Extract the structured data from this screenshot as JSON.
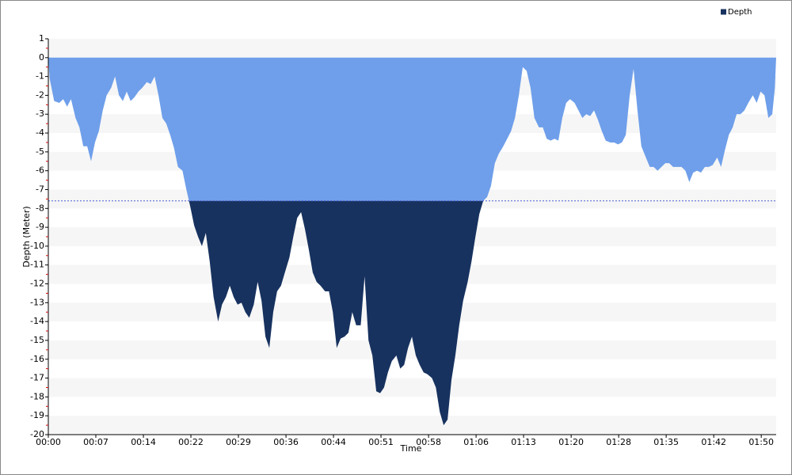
{
  "chart_data": {
    "type": "area",
    "x_label": "Time",
    "y_label": "Depth (Meter)",
    "x": [
      0,
      0.2,
      0.9,
      1.7,
      2.3,
      2.9,
      3.5,
      4.2,
      4.8,
      5.4,
      6.0,
      6.6,
      7.2,
      7.8,
      8.4,
      9.0,
      9.7,
      10.3,
      10.9,
      11.5,
      12.1,
      12.7,
      13.3,
      13.9,
      14.5,
      15.2,
      15.8,
      16.4,
      17.0,
      17.6,
      18.2,
      18.8,
      19.4,
      20.0,
      20.7,
      21.3,
      21.9,
      22.5,
      23.1,
      23.7,
      24.3,
      24.9,
      25.5,
      26.2,
      26.8,
      27.4,
      28.0,
      28.6,
      29.2,
      29.8,
      30.4,
      31.0,
      31.7,
      32.3,
      32.9,
      33.5,
      34.1,
      34.7,
      35.3,
      35.9,
      36.5,
      37.2,
      37.8,
      38.4,
      39.0,
      39.6,
      40.2,
      40.8,
      41.4,
      42.0,
      42.7,
      43.3,
      43.9,
      44.5,
      45.1,
      45.7,
      46.3,
      46.9,
      47.5,
      48.2,
      48.8,
      49.4,
      50.0,
      50.6,
      51.2,
      51.8,
      52.4,
      53.0,
      53.7,
      54.3,
      54.9,
      55.5,
      56.1,
      56.7,
      57.3,
      57.9,
      58.5,
      59.2,
      59.8,
      60.4,
      61.0,
      61.6,
      62.2,
      62.8,
      63.4,
      64.0,
      64.7,
      65.3,
      65.9,
      66.5,
      67.1,
      67.7,
      68.3,
      68.9,
      69.5,
      70.2,
      70.8,
      71.4,
      72.0,
      72.6,
      73.2,
      73.8,
      74.4,
      75.0,
      75.7,
      76.3,
      76.9,
      77.5,
      78.1,
      78.7,
      79.3,
      79.9,
      80.5,
      81.2,
      81.8,
      82.4,
      83.0,
      83.6,
      84.2,
      84.8,
      85.4,
      86.0,
      86.7,
      87.3,
      87.9,
      88.5,
      89.1,
      89.7,
      90.3,
      90.9,
      91.5,
      92.2,
      92.8,
      93.4,
      94.0,
      94.6,
      95.2,
      95.8,
      96.4,
      97.0,
      97.7,
      98.3,
      98.9,
      99.5,
      100.1,
      100.7,
      101.3,
      101.9,
      102.5,
      103.2,
      103.8,
      104.4,
      105.0,
      105.6,
      106.2,
      106.8,
      107.4,
      108.0,
      108.7,
      109.3,
      109.9,
      110.5,
      111.1,
      111.7,
      112.1,
      112.3
    ],
    "series": [
      {
        "name": "Depth",
        "color": "#17325f",
        "above_color": "#6f9fea",
        "values": [
          0,
          -1.1,
          -2.3,
          -2.4,
          -2.2,
          -2.6,
          -2.2,
          -3.2,
          -3.7,
          -4.7,
          -4.7,
          -5.5,
          -4.5,
          -3.9,
          -2.8,
          -2.0,
          -1.6,
          -1.0,
          -2.0,
          -2.3,
          -1.8,
          -2.3,
          -2.1,
          -1.8,
          -1.6,
          -1.3,
          -1.4,
          -1.0,
          -2.0,
          -3.2,
          -3.5,
          -4.1,
          -4.8,
          -5.8,
          -6.0,
          -7.0,
          -7.9,
          -8.9,
          -9.5,
          -10.0,
          -9.3,
          -10.8,
          -12.7,
          -14.0,
          -13.1,
          -12.7,
          -12.1,
          -12.7,
          -13.1,
          -13.0,
          -13.5,
          -13.8,
          -13.1,
          -11.9,
          -12.9,
          -14.8,
          -15.4,
          -13.5,
          -12.4,
          -12.1,
          -11.4,
          -10.6,
          -9.5,
          -8.5,
          -8.2,
          -9.1,
          -10.2,
          -11.4,
          -11.9,
          -12.1,
          -12.4,
          -12.4,
          -13.5,
          -15.4,
          -14.9,
          -14.8,
          -14.6,
          -13.5,
          -14.2,
          -14.2,
          -11.6,
          -15.0,
          -15.8,
          -17.7,
          -17.8,
          -17.5,
          -16.7,
          -16.1,
          -15.8,
          -16.5,
          -16.3,
          -15.4,
          -14.8,
          -15.8,
          -16.3,
          -16.7,
          -16.8,
          -17.0,
          -17.5,
          -18.8,
          -19.5,
          -19.2,
          -17.1,
          -15.8,
          -14.2,
          -12.9,
          -11.9,
          -10.8,
          -9.5,
          -8.3,
          -7.6,
          -7.4,
          -6.8,
          -5.6,
          -5.1,
          -4.7,
          -4.3,
          -3.9,
          -3.2,
          -2.0,
          -0.5,
          -0.7,
          -1.6,
          -3.2,
          -3.7,
          -3.7,
          -4.3,
          -4.4,
          -4.3,
          -4.4,
          -3.2,
          -2.4,
          -2.2,
          -2.4,
          -2.8,
          -3.2,
          -3.0,
          -3.1,
          -2.8,
          -3.3,
          -3.9,
          -4.4,
          -4.5,
          -4.5,
          -4.6,
          -4.5,
          -4.1,
          -2.0,
          -0.6,
          -2.8,
          -4.7,
          -5.3,
          -5.8,
          -5.8,
          -6.0,
          -5.8,
          -5.6,
          -5.6,
          -5.8,
          -5.8,
          -5.8,
          -6.0,
          -6.6,
          -6.1,
          -6.0,
          -6.1,
          -5.8,
          -5.8,
          -5.7,
          -5.3,
          -5.8,
          -4.9,
          -4.1,
          -3.7,
          -3.0,
          -3.0,
          -2.8,
          -2.4,
          -2.0,
          -2.4,
          -1.8,
          -2.0,
          -3.2,
          -3.0,
          -1.6,
          0
        ]
      }
    ],
    "threshold": -7.6,
    "xlim": [
      0,
      112.3
    ],
    "xticks": [
      {
        "value": 0,
        "label": "00:00"
      },
      {
        "value": 7.33,
        "label": "00:07"
      },
      {
        "value": 14.67,
        "label": "00:14"
      },
      {
        "value": 22,
        "label": "00:22"
      },
      {
        "value": 29.33,
        "label": "00:29"
      },
      {
        "value": 36.67,
        "label": "00:36"
      },
      {
        "value": 44,
        "label": "00:44"
      },
      {
        "value": 51.33,
        "label": "00:51"
      },
      {
        "value": 58.67,
        "label": "00:58"
      },
      {
        "value": 66,
        "label": "01:06"
      },
      {
        "value": 73.33,
        "label": "01:13"
      },
      {
        "value": 80.67,
        "label": "01:20"
      },
      {
        "value": 88,
        "label": "01:28"
      },
      {
        "value": 95.33,
        "label": "01:35"
      },
      {
        "value": 102.67,
        "label": "01:42"
      },
      {
        "value": 110,
        "label": "01:50"
      }
    ],
    "ylim": [
      -20,
      1
    ],
    "yticks": [
      1,
      0,
      -1,
      -2,
      -3,
      -4,
      -5,
      -6,
      -7,
      -8,
      -9,
      -10,
      -11,
      -12,
      -13,
      -14,
      -15,
      -16,
      -17,
      -18,
      -19,
      -20
    ],
    "legend": "top-right",
    "grid": "bands"
  }
}
